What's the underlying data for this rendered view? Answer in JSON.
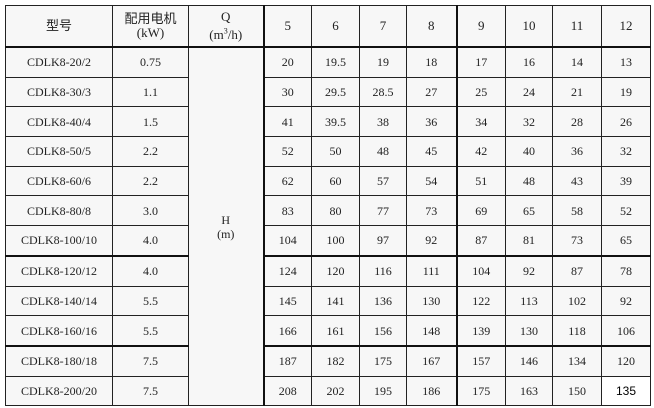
{
  "header": {
    "model": "型号",
    "motor_line1": "配用电机",
    "motor_line2": "(kW)",
    "q_line1": "Q",
    "q_unit_pre": "(m",
    "q_unit_sup": "3",
    "q_unit_post": "/h)",
    "flows": [
      "5",
      "6",
      "7",
      "8",
      "9",
      "10",
      "11",
      "12"
    ]
  },
  "h_label_line1": "H",
  "h_label_line2": "(m)",
  "rows": [
    {
      "model": "CDLK8-20/2",
      "kw": "0.75",
      "h": [
        "20",
        "19.5",
        "19",
        "18",
        "17",
        "16",
        "14",
        "13"
      ]
    },
    {
      "model": "CDLK8-30/3",
      "kw": "1.1",
      "h": [
        "30",
        "29.5",
        "28.5",
        "27",
        "25",
        "24",
        "21",
        "19"
      ]
    },
    {
      "model": "CDLK8-40/4",
      "kw": "1.5",
      "h": [
        "41",
        "39.5",
        "38",
        "36",
        "34",
        "32",
        "28",
        "26"
      ]
    },
    {
      "model": "CDLK8-50/5",
      "kw": "2.2",
      "h": [
        "52",
        "50",
        "48",
        "45",
        "42",
        "40",
        "36",
        "32"
      ]
    },
    {
      "model": "CDLK8-60/6",
      "kw": "2.2",
      "h": [
        "62",
        "60",
        "57",
        "54",
        "51",
        "48",
        "43",
        "39"
      ]
    },
    {
      "model": "CDLK8-80/8",
      "kw": "3.0",
      "h": [
        "83",
        "80",
        "77",
        "73",
        "69",
        "65",
        "58",
        "52"
      ]
    },
    {
      "model": "CDLK8-100/10",
      "kw": "4.0",
      "h": [
        "104",
        "100",
        "97",
        "92",
        "87",
        "81",
        "73",
        "65"
      ]
    },
    {
      "model": "CDLK8-120/12",
      "kw": "4.0",
      "h": [
        "124",
        "120",
        "116",
        "111",
        "104",
        "92",
        "87",
        "78"
      ]
    },
    {
      "model": "CDLK8-140/14",
      "kw": "5.5",
      "h": [
        "145",
        "141",
        "136",
        "130",
        "122",
        "113",
        "102",
        "92"
      ]
    },
    {
      "model": "CDLK8-160/16",
      "kw": "5.5",
      "h": [
        "166",
        "161",
        "156",
        "148",
        "139",
        "130",
        "118",
        "106"
      ]
    },
    {
      "model": "CDLK8-180/18",
      "kw": "7.5",
      "h": [
        "187",
        "182",
        "175",
        "167",
        "157",
        "146",
        "134",
        "120"
      ]
    },
    {
      "model": "CDLK8-200/20",
      "kw": "7.5",
      "h": [
        "208",
        "202",
        "195",
        "186",
        "175",
        "163",
        "150",
        "135"
      ]
    }
  ]
}
